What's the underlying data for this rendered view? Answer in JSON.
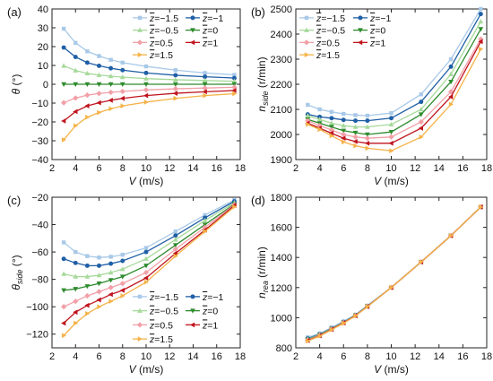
{
  "series_styles": [
    {
      "key": "-1.5",
      "color": "#a9c9e8",
      "marker": "square"
    },
    {
      "key": "-1",
      "color": "#1f5fa6",
      "marker": "circle"
    },
    {
      "key": "-0.5",
      "color": "#a6d99a",
      "marker": "triangle-up"
    },
    {
      "key": "0",
      "color": "#2e8b2e",
      "marker": "triangle-down"
    },
    {
      "key": "0.5",
      "color": "#f2a0a8",
      "marker": "diamond"
    },
    {
      "key": "1",
      "color": "#c0141e",
      "marker": "triangle-left"
    },
    {
      "key": "1.5",
      "color": "#f5b34a",
      "marker": "triangle-right"
    }
  ],
  "chart_data": [
    {
      "panel": "(a)",
      "type": "line",
      "xlabel": "V (m/s)",
      "ylabel": "θ (°)",
      "xlim": [
        2,
        18
      ],
      "ylim": [
        -40,
        40
      ],
      "xticks": [
        2,
        4,
        6,
        8,
        10,
        12,
        14,
        16,
        18
      ],
      "yticks": [
        -40,
        -30,
        -20,
        -10,
        0,
        10,
        20,
        30,
        40
      ],
      "grid": false,
      "legend": "top-right",
      "x": [
        3,
        4,
        5,
        6,
        7,
        8,
        10,
        12.5,
        15,
        17.5
      ],
      "series": [
        {
          "name": "z̄=-1.5",
          "values": [
            29.5,
            22.0,
            17.5,
            15.0,
            13.0,
            11.5,
            9.5,
            7.5,
            6.0,
            5.0
          ]
        },
        {
          "name": "z̄=-1",
          "values": [
            19.5,
            14.5,
            11.5,
            9.8,
            8.5,
            7.5,
            6.0,
            4.8,
            4.0,
            3.3
          ]
        },
        {
          "name": "z̄=-0.5",
          "values": [
            9.8,
            7.3,
            5.8,
            4.9,
            4.3,
            3.8,
            3.0,
            2.4,
            2.0,
            1.6
          ]
        },
        {
          "name": "z̄=0",
          "values": [
            0,
            0,
            0,
            0,
            0,
            0,
            0,
            0,
            0,
            0
          ]
        },
        {
          "name": "z̄=0.5",
          "values": [
            -9.8,
            -7.3,
            -5.8,
            -4.9,
            -4.3,
            -3.8,
            -3.0,
            -2.4,
            -2.0,
            -1.6
          ]
        },
        {
          "name": "z̄=1",
          "values": [
            -19.5,
            -14.5,
            -11.5,
            -9.8,
            -8.5,
            -7.5,
            -6.0,
            -4.8,
            -4.0,
            -3.3
          ]
        },
        {
          "name": "z̄=1.5",
          "values": [
            -29.5,
            -22.0,
            -17.5,
            -15.0,
            -13.0,
            -11.5,
            -9.5,
            -7.5,
            -6.0,
            -5.0
          ]
        }
      ]
    },
    {
      "panel": "(b)",
      "type": "line",
      "xlabel": "V (m/s)",
      "ylabel": "n_side (r/min)",
      "xlim": [
        2,
        18
      ],
      "ylim": [
        1900,
        2500
      ],
      "xticks": [
        2,
        4,
        6,
        8,
        10,
        12,
        14,
        16,
        18
      ],
      "yticks": [
        1900,
        2000,
        2100,
        2200,
        2300,
        2400,
        2500
      ],
      "grid": false,
      "legend": "top-left",
      "x": [
        3,
        4,
        5,
        6,
        7,
        8,
        10,
        12.5,
        15,
        17.5
      ],
      "series": [
        {
          "name": "z̄=-1.5",
          "values": [
            2118,
            2100,
            2090,
            2082,
            2077,
            2075,
            2085,
            2160,
            2300,
            2500
          ]
        },
        {
          "name": "z̄=-1",
          "values": [
            2080,
            2070,
            2065,
            2058,
            2055,
            2055,
            2065,
            2130,
            2270,
            2480
          ]
        },
        {
          "name": "z̄=-0.5",
          "values": [
            2075,
            2060,
            2045,
            2035,
            2030,
            2030,
            2040,
            2100,
            2240,
            2450
          ]
        },
        {
          "name": "z̄=0",
          "values": [
            2060,
            2045,
            2030,
            2015,
            2007,
            2000,
            2010,
            2080,
            2210,
            2420
          ]
        },
        {
          "name": "z̄=0.5",
          "values": [
            2055,
            2035,
            2018,
            2000,
            1990,
            1985,
            1990,
            2050,
            2170,
            2380
          ]
        },
        {
          "name": "z̄=1",
          "values": [
            2045,
            2025,
            2005,
            1985,
            1972,
            1965,
            1965,
            2025,
            2150,
            2370
          ]
        },
        {
          "name": "z̄=1.5",
          "values": [
            2040,
            2020,
            1995,
            1970,
            1955,
            1945,
            1935,
            1990,
            2120,
            2340
          ]
        }
      ]
    },
    {
      "panel": "(c)",
      "type": "line",
      "xlabel": "V (m/s)",
      "ylabel": "θ_side (°)",
      "xlim": [
        2,
        18
      ],
      "ylim": [
        -130,
        -20
      ],
      "xticks": [
        2,
        4,
        6,
        8,
        10,
        12,
        14,
        16,
        18
      ],
      "yticks": [
        -120,
        -100,
        -80,
        -60,
        -40,
        -20
      ],
      "grid": false,
      "legend": "bottom-right",
      "x": [
        3,
        4,
        5,
        6,
        7,
        8,
        10,
        12.5,
        15,
        17.5
      ],
      "series": [
        {
          "name": "z̄=-1.5",
          "values": [
            -53,
            -60,
            -63,
            -64,
            -63.5,
            -62,
            -57,
            -45,
            -33,
            -22
          ]
        },
        {
          "name": "z̄=-1",
          "values": [
            -65,
            -68,
            -70,
            -70,
            -68.5,
            -66.5,
            -60,
            -48,
            -35,
            -23
          ]
        },
        {
          "name": "z̄=-0.5",
          "values": [
            -76,
            -78,
            -78,
            -77,
            -75,
            -72.5,
            -65,
            -51,
            -37,
            -24
          ]
        },
        {
          "name": "z̄=0",
          "values": [
            -88,
            -87,
            -85,
            -83,
            -80.5,
            -78,
            -70,
            -55,
            -40,
            -25
          ]
        },
        {
          "name": "z̄=0.5",
          "values": [
            -100,
            -96,
            -92,
            -89,
            -86,
            -83,
            -75,
            -58,
            -42,
            -25.5
          ]
        },
        {
          "name": "z̄=1",
          "values": [
            -112,
            -104,
            -99,
            -95,
            -91,
            -88,
            -79,
            -61,
            -44,
            -26
          ]
        },
        {
          "name": "z̄=1.5",
          "values": [
            -121,
            -112,
            -105,
            -100,
            -96,
            -92,
            -82,
            -63,
            -45,
            -27
          ]
        }
      ]
    },
    {
      "panel": "(d)",
      "type": "line",
      "xlabel": "V (m/s)",
      "ylabel": "n_rea (r/min)",
      "xlim": [
        2,
        18
      ],
      "ylim": [
        800,
        1800
      ],
      "xticks": [
        2,
        4,
        6,
        8,
        10,
        12,
        14,
        16,
        18
      ],
      "yticks": [
        800,
        1000,
        1200,
        1400,
        1600,
        1800
      ],
      "grid": false,
      "legend": "none",
      "x": [
        3,
        4,
        5,
        6,
        7,
        8,
        10,
        12.5,
        15,
        17.5
      ],
      "series": [
        {
          "name": "z̄=-1.5",
          "values": [
            870,
            895,
            935,
            975,
            1020,
            1080,
            1200,
            1370,
            1545,
            1735
          ]
        },
        {
          "name": "z̄=-1",
          "values": [
            862,
            890,
            930,
            972,
            1018,
            1078,
            1200,
            1370,
            1545,
            1735
          ]
        },
        {
          "name": "z̄=-0.5",
          "values": [
            858,
            887,
            928,
            970,
            1016,
            1077,
            1200,
            1370,
            1545,
            1735
          ]
        },
        {
          "name": "z̄=0",
          "values": [
            855,
            885,
            926,
            968,
            1015,
            1076,
            1200,
            1370,
            1545,
            1735
          ]
        },
        {
          "name": "z̄=0.5",
          "values": [
            852,
            883,
            924,
            967,
            1014,
            1075,
            1200,
            1370,
            1545,
            1735
          ]
        },
        {
          "name": "z̄=1",
          "values": [
            848,
            880,
            922,
            965,
            1013,
            1074,
            1200,
            1370,
            1545,
            1735
          ]
        },
        {
          "name": "z̄=1.5",
          "values": [
            845,
            878,
            920,
            963,
            1012,
            1073,
            1200,
            1370,
            1545,
            1735
          ]
        }
      ]
    }
  ]
}
